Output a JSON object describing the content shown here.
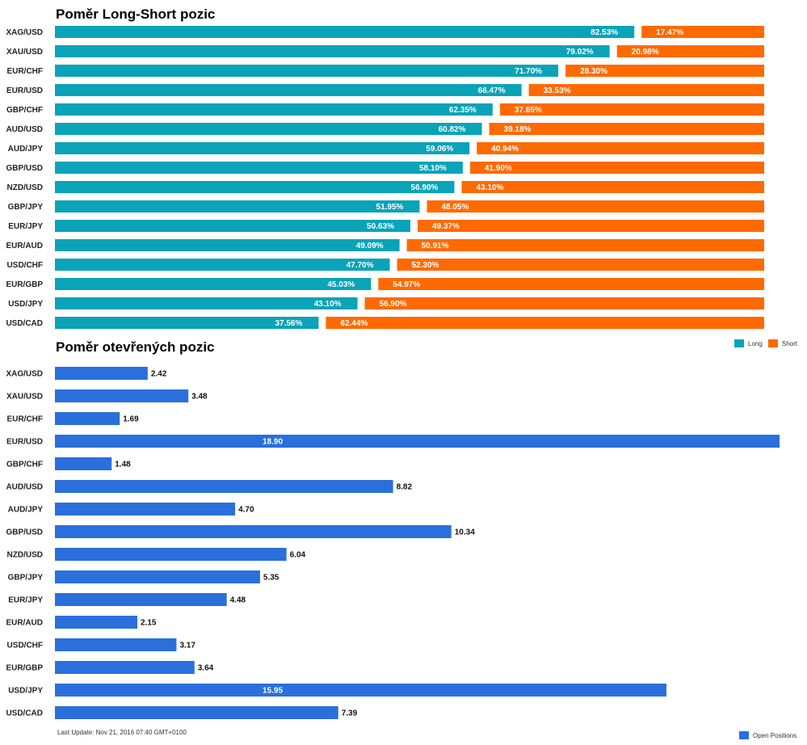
{
  "colors": {
    "long": "#0aa3b8",
    "short": "#ff6a00",
    "open": "#2a6fdb"
  },
  "chart_data": [
    {
      "type": "bar",
      "orientation": "horizontal",
      "stacked": true,
      "title": "Poměr Long-Short pozic",
      "categories": [
        "XAG/USD",
        "XAU/USD",
        "EUR/CHF",
        "EUR/USD",
        "GBP/CHF",
        "AUD/USD",
        "AUD/JPY",
        "GBP/USD",
        "NZD/USD",
        "GBP/JPY",
        "EUR/JPY",
        "EUR/AUD",
        "USD/CHF",
        "EUR/GBP",
        "USD/JPY",
        "USD/CAD"
      ],
      "series": [
        {
          "name": "Long",
          "values": [
            82.53,
            79.02,
            71.7,
            66.47,
            62.35,
            60.82,
            59.06,
            58.1,
            56.9,
            51.95,
            50.63,
            49.09,
            47.7,
            45.03,
            43.1,
            37.56
          ]
        },
        {
          "name": "Short",
          "values": [
            17.47,
            20.98,
            28.3,
            33.53,
            37.65,
            39.18,
            40.94,
            41.9,
            43.1,
            48.05,
            49.37,
            50.91,
            52.3,
            54.97,
            56.9,
            62.44
          ]
        }
      ],
      "value_labels": {
        "long": [
          "82.53%",
          "79.02%",
          "71.70%",
          "66.47%",
          "62.35%",
          "60.82%",
          "59.06%",
          "58.10%",
          "56.90%",
          "51.95%",
          "50.63%",
          "49.09%",
          "47.70%",
          "45.03%",
          "43.10%",
          "37.56%"
        ],
        "short": [
          "17.47%",
          "20.98%",
          "28.30%",
          "33.53%",
          "37.65%",
          "39.18%",
          "40.94%",
          "41.90%",
          "43.10%",
          "48.05%",
          "49.37%",
          "50.91%",
          "52.30%",
          "54.97%",
          "56.90%",
          "62.44%"
        ]
      },
      "xlim": [
        0,
        100
      ],
      "legend": "bottom-right",
      "grid": false
    },
    {
      "type": "bar",
      "orientation": "horizontal",
      "title": "Poměr otevřených pozic",
      "categories": [
        "XAG/USD",
        "XAU/USD",
        "EUR/CHF",
        "EUR/USD",
        "GBP/CHF",
        "AUD/USD",
        "AUD/JPY",
        "GBP/USD",
        "NZD/USD",
        "GBP/JPY",
        "EUR/JPY",
        "EUR/AUD",
        "USD/CHF",
        "EUR/GBP",
        "USD/JPY",
        "USD/CAD"
      ],
      "series": [
        {
          "name": "Open Positions",
          "values": [
            2.42,
            3.48,
            1.69,
            18.9,
            1.48,
            8.82,
            4.7,
            10.34,
            6.04,
            5.35,
            4.48,
            2.15,
            3.17,
            3.64,
            15.95,
            7.39
          ]
        }
      ],
      "value_labels": [
        "2.42",
        "3.48",
        "1.69",
        "18.90",
        "1.48",
        "8.82",
        "4.70",
        "10.34",
        "6.04",
        "5.35",
        "4.48",
        "2.15",
        "3.17",
        "3.64",
        "15.95",
        "7.39"
      ],
      "xlim": [
        0,
        18.9
      ],
      "legend": "bottom-right",
      "grid": false
    }
  ],
  "legend": {
    "long": "Long",
    "short": "Short",
    "open": "Open Positions"
  },
  "footer": "Last Update: Nov 21, 2016 07:40 GMT+0100"
}
